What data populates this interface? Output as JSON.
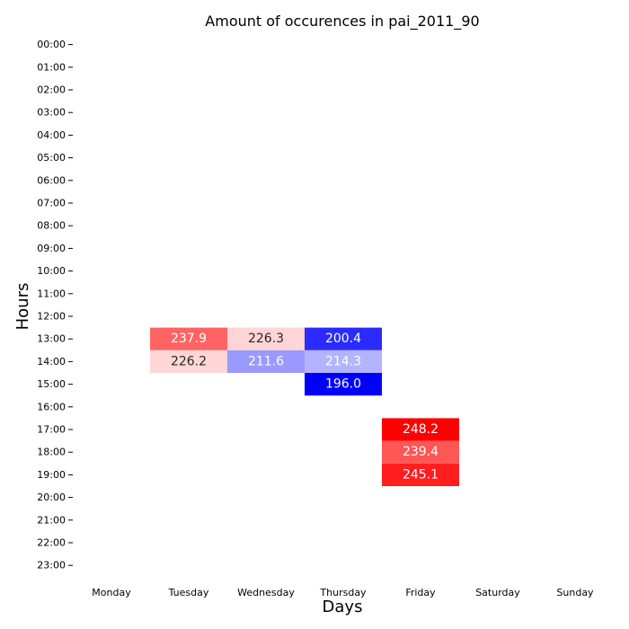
{
  "chart_data": {
    "type": "heatmap",
    "title": "Amount of occurences in pai_2011_90",
    "xlabel": "Days",
    "ylabel": "Hours",
    "x_categories": [
      "Monday",
      "Tuesday",
      "Wednesday",
      "Thursday",
      "Friday",
      "Saturday",
      "Sunday"
    ],
    "y_categories": [
      "00:00",
      "01:00",
      "02:00",
      "03:00",
      "04:00",
      "05:00",
      "06:00",
      "07:00",
      "08:00",
      "09:00",
      "10:00",
      "11:00",
      "12:00",
      "13:00",
      "14:00",
      "15:00",
      "16:00",
      "17:00",
      "18:00",
      "19:00",
      "20:00",
      "21:00",
      "22:00",
      "23:00"
    ],
    "cells": [
      {
        "day": "Tuesday",
        "hour": "13:00",
        "value": 237.9
      },
      {
        "day": "Wednesday",
        "hour": "13:00",
        "value": 226.3
      },
      {
        "day": "Thursday",
        "hour": "13:00",
        "value": 200.4
      },
      {
        "day": "Tuesday",
        "hour": "14:00",
        "value": 226.2
      },
      {
        "day": "Wednesday",
        "hour": "14:00",
        "value": 211.6
      },
      {
        "day": "Thursday",
        "hour": "14:00",
        "value": 214.3
      },
      {
        "day": "Thursday",
        "hour": "15:00",
        "value": 196.0
      },
      {
        "day": "Friday",
        "hour": "17:00",
        "value": 248.2
      },
      {
        "day": "Friday",
        "hour": "18:00",
        "value": 239.4
      },
      {
        "day": "Friday",
        "hour": "19:00",
        "value": 245.1
      }
    ],
    "colormap": "bwr",
    "color_center": 222,
    "colors": {
      "low": "#0000ff",
      "mid": "#ffffff",
      "high": "#ff0000"
    },
    "grid": false,
    "legend": "none"
  }
}
